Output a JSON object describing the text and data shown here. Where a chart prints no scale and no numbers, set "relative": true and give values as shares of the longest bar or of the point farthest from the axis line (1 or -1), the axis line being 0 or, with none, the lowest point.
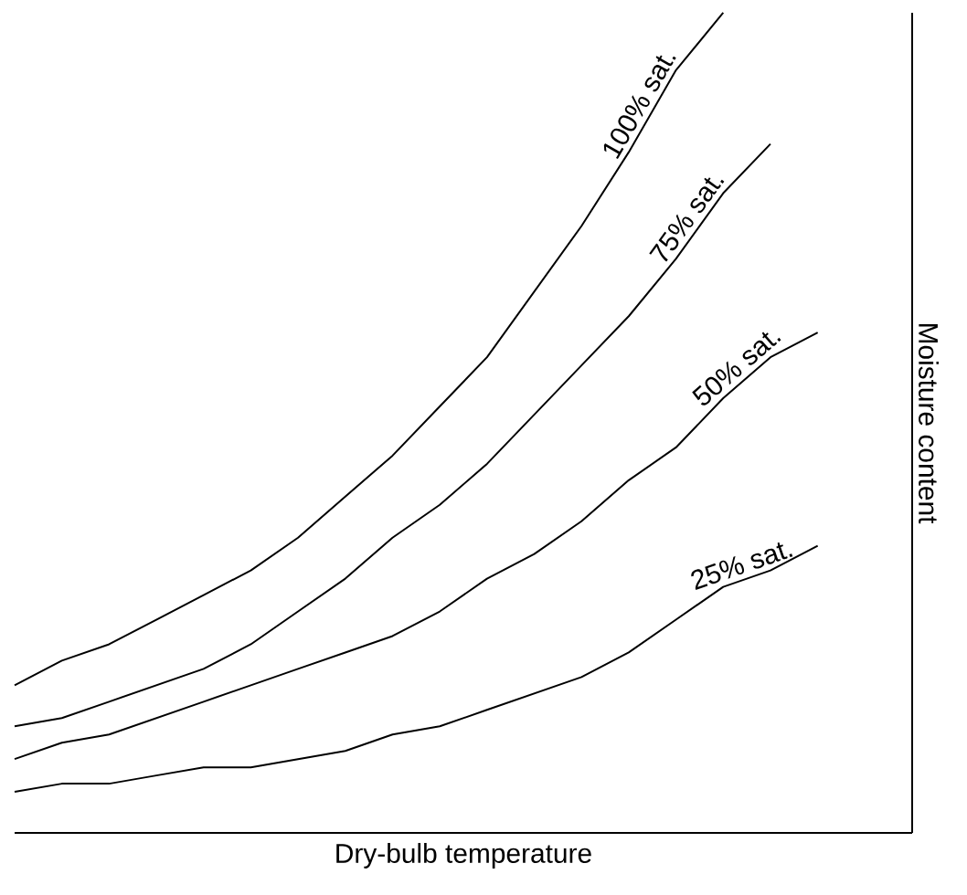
{
  "chart_data": {
    "type": "line",
    "relative": true,
    "xlabel": "Dry-bulb temperature",
    "ylabel": "Moisture content",
    "line_style": "solid",
    "categories": [
      null,
      null,
      null,
      null,
      null,
      null,
      null,
      null,
      null,
      null,
      null,
      null,
      null,
      null,
      null,
      null,
      null,
      null,
      null,
      null
    ],
    "series": [
      {
        "name": "100% sat.",
        "color": "#000000",
        "values": [
          0.18,
          0.21,
          0.23,
          0.26,
          0.29,
          0.32,
          0.36,
          0.41,
          0.46,
          0.52,
          0.58,
          0.66,
          0.74,
          0.83,
          0.93,
          1.0,
          null,
          null,
          null,
          null
        ]
      },
      {
        "name": "75% sat.",
        "color": "#000000",
        "values": [
          0.13,
          0.14,
          0.16,
          0.18,
          0.2,
          0.23,
          0.27,
          0.31,
          0.36,
          0.4,
          0.45,
          0.51,
          0.57,
          0.63,
          0.7,
          0.78,
          0.84,
          null,
          null,
          null
        ]
      },
      {
        "name": "50% sat.",
        "color": "#000000",
        "values": [
          0.09,
          0.11,
          0.12,
          0.14,
          0.16,
          0.18,
          0.2,
          0.22,
          0.24,
          0.27,
          0.31,
          0.34,
          0.38,
          0.43,
          0.47,
          0.53,
          0.58,
          0.61,
          null,
          null
        ]
      },
      {
        "name": "25% sat.",
        "color": "#000000",
        "values": [
          0.05,
          0.06,
          0.06,
          0.07,
          0.08,
          0.08,
          0.09,
          0.1,
          0.12,
          0.13,
          0.15,
          0.17,
          0.19,
          0.22,
          0.26,
          0.3,
          0.32,
          0.35,
          null,
          null
        ]
      }
    ]
  }
}
